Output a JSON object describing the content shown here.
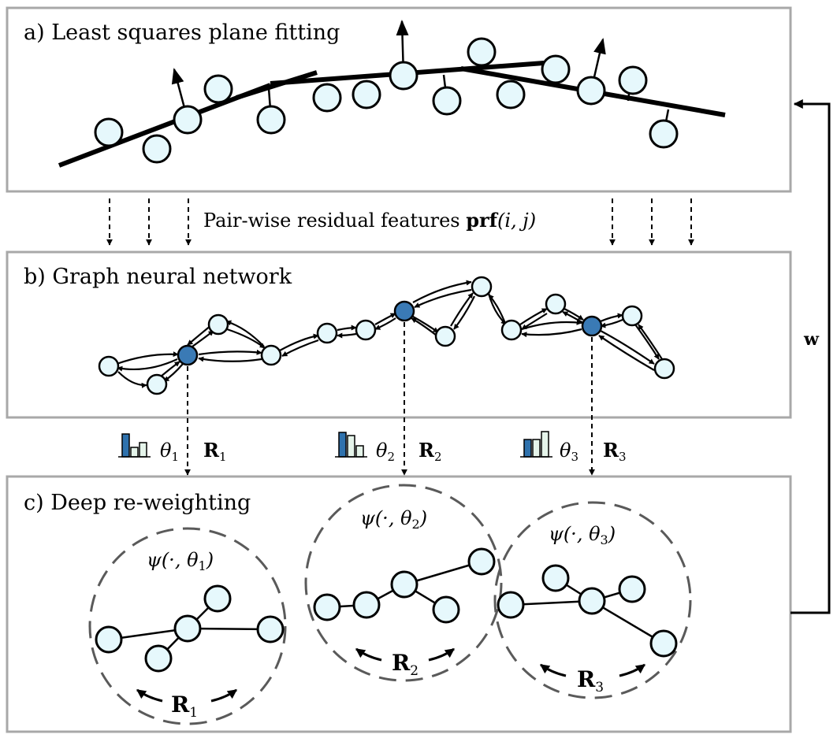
{
  "panels": {
    "a": {
      "title": "a) Least squares plane fitting"
    },
    "b": {
      "title": "b) Graph neural network"
    },
    "c": {
      "title": "c) Deep re-weighting"
    }
  },
  "residual_label": {
    "prefix": "Pair-wise residual features ",
    "func": "prf",
    "args": "(i, j)"
  },
  "feedback_label": "w",
  "params": [
    {
      "theta": "θ",
      "theta_sub": "1",
      "rot": "R",
      "rot_sub": "1"
    },
    {
      "theta": "θ",
      "theta_sub": "2",
      "rot": "R",
      "rot_sub": "2"
    },
    {
      "theta": "θ",
      "theta_sub": "3",
      "rot": "R",
      "rot_sub": "3"
    }
  ],
  "psi_labels": [
    {
      "prefix": "ψ(·, θ",
      "sub": "1",
      "suffix": ")"
    },
    {
      "prefix": "ψ(·, θ",
      "sub": "2",
      "suffix": ")"
    },
    {
      "prefix": "ψ(·, θ",
      "sub": "3",
      "suffix": ")"
    }
  ],
  "rotation_labels": [
    {
      "text": "R",
      "sub": "1"
    },
    {
      "text": "R",
      "sub": "2"
    },
    {
      "text": "R",
      "sub": "3"
    }
  ],
  "colors": {
    "node_fill": "#e6f8fc",
    "node_fill_dark": "#3a7ab5",
    "panel_border": "#a8a8a8",
    "dashed_circle": "#5a5a5a",
    "bar_dark": "#2f72ad",
    "bar_light": "#e5f4ea"
  }
}
